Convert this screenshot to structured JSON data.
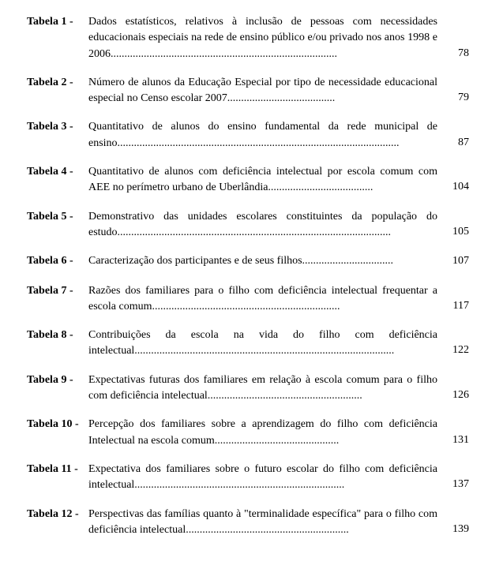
{
  "font": {
    "family": "Times New Roman",
    "size_pt": 14,
    "color": "#000000"
  },
  "background_color": "#ffffff",
  "entries": [
    {
      "label": "Tabela 1 -",
      "desc": "Dados estatísticos, relativos à inclusão de pessoas com necessidades educacionais especiais na rede de ensino público e/ou privado nos anos 1998 e 2006..................................................................................",
      "page": "78"
    },
    {
      "label": "Tabela 2 -",
      "desc": "Número de alunos da Educação Especial por tipo de necessidade educacional especial no Censo escolar 2007.......................................",
      "page": "79"
    },
    {
      "label": "Tabela 3 -",
      "desc": "Quantitativo de alunos do ensino fundamental da rede municipal de ensino......................................................................................................",
      "page": "87"
    },
    {
      "label": "Tabela 4 -",
      "desc": "Quantitativo de alunos com deficiência intelectual por escola comum com AEE no perímetro urbano de Uberlândia......................................",
      "page": "104"
    },
    {
      "label": "Tabela 5 -",
      "desc": "Demonstrativo das unidades escolares constituintes da população do estudo...................................................................................................",
      "page": "105"
    },
    {
      "label": "Tabela 6 -",
      "desc": "Caracterização dos participantes e de seus filhos.................................",
      "page": "107"
    },
    {
      "label": "Tabela 7 -",
      "desc": "Razões dos familiares para o filho com deficiência intelectual frequentar a escola comum....................................................................",
      "page": "117"
    },
    {
      "label": "Tabela 8 -",
      "desc": "Contribuições da escola na vida do filho com deficiência intelectual..............................................................................................",
      "page": "122"
    },
    {
      "label": "Tabela 9 -",
      "desc": "Expectativas futuras dos familiares em relação à escola comum para o filho com deficiência intelectual........................................................",
      "page": "126"
    },
    {
      "label": "Tabela 10 -",
      "desc": "Percepção dos familiares sobre a aprendizagem do filho com deficiência Intelectual na escola comum.............................................",
      "page": "131"
    },
    {
      "label": "Tabela 11 -",
      "desc": "Expectativa dos familiares sobre o futuro escolar do filho com deficiência intelectual............................................................................",
      "page": "137"
    },
    {
      "label": "Tabela 12 -",
      "desc": "Perspectivas das famílias quanto à \"terminalidade específica\" para o filho com deficiência intelectual...........................................................",
      "page": "139"
    }
  ]
}
